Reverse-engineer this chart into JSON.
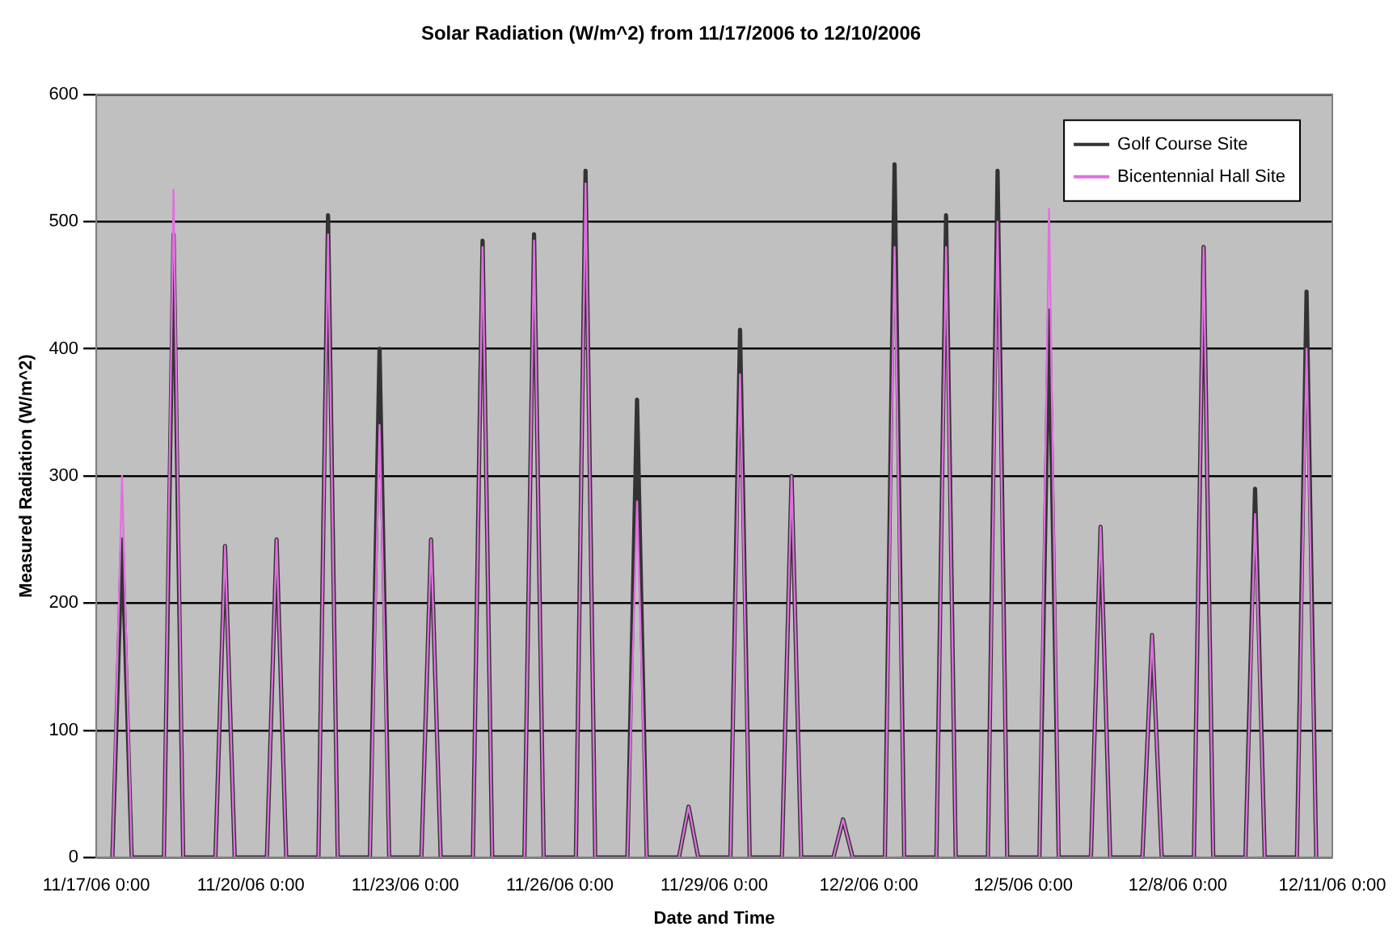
{
  "chart_data": {
    "type": "line",
    "title": "Solar Radiation (W/m^2) from 11/17/2006 to 12/10/2006",
    "xlabel": "Date and Time",
    "ylabel": "Measured Radiation (W/m^2)",
    "x": [
      "2006-11-17T07:30",
      "2006-11-17T12:00",
      "2006-11-17T16:30",
      "2006-11-18T07:30",
      "2006-11-18T12:00",
      "2006-11-18T16:30",
      "2006-11-19T07:30",
      "2006-11-19T12:00",
      "2006-11-19T16:30",
      "2006-11-20T07:30",
      "2006-11-20T12:00",
      "2006-11-20T16:30",
      "2006-11-21T07:30",
      "2006-11-21T12:00",
      "2006-11-21T16:30",
      "2006-11-22T07:30",
      "2006-11-22T12:00",
      "2006-11-22T16:30",
      "2006-11-23T07:30",
      "2006-11-23T12:00",
      "2006-11-23T16:30",
      "2006-11-24T07:30",
      "2006-11-24T12:00",
      "2006-11-24T16:30",
      "2006-11-25T07:30",
      "2006-11-25T12:00",
      "2006-11-25T16:30",
      "2006-11-26T07:30",
      "2006-11-26T12:00",
      "2006-11-26T16:30",
      "2006-11-27T07:30",
      "2006-11-27T12:00",
      "2006-11-27T16:30",
      "2006-11-28T07:30",
      "2006-11-28T12:00",
      "2006-11-28T16:30",
      "2006-11-29T07:30",
      "2006-11-29T12:00",
      "2006-11-29T16:30",
      "2006-11-30T07:30",
      "2006-11-30T12:00",
      "2006-11-30T16:30",
      "2006-12-01T07:30",
      "2006-12-01T12:00",
      "2006-12-01T16:30",
      "2006-12-02T07:30",
      "2006-12-02T12:00",
      "2006-12-02T16:30",
      "2006-12-03T07:30",
      "2006-12-03T12:00",
      "2006-12-03T16:30",
      "2006-12-04T07:30",
      "2006-12-04T12:00",
      "2006-12-04T16:30",
      "2006-12-05T07:30",
      "2006-12-05T12:00",
      "2006-12-05T16:30",
      "2006-12-06T07:30",
      "2006-12-06T12:00",
      "2006-12-06T16:30",
      "2006-12-07T07:30",
      "2006-12-07T12:00",
      "2006-12-07T16:30",
      "2006-12-08T07:30",
      "2006-12-08T12:00",
      "2006-12-08T16:30",
      "2006-12-09T07:30",
      "2006-12-09T12:00",
      "2006-12-09T16:30",
      "2006-12-10T07:30",
      "2006-12-10T12:00",
      "2006-12-10T16:30"
    ],
    "series": [
      {
        "name": "Golf Course Site",
        "color": "#333333",
        "values": [
          0,
          250,
          0,
          0,
          490,
          0,
          0,
          245,
          0,
          0,
          250,
          0,
          0,
          505,
          0,
          0,
          400,
          0,
          0,
          250,
          0,
          0,
          485,
          0,
          0,
          490,
          0,
          0,
          540,
          0,
          0,
          360,
          0,
          0,
          40,
          0,
          0,
          415,
          0,
          0,
          300,
          0,
          0,
          30,
          0,
          0,
          545,
          0,
          0,
          505,
          0,
          0,
          540,
          0,
          0,
          430,
          0,
          0,
          260,
          0,
          0,
          175,
          0,
          0,
          480,
          0,
          0,
          290,
          0,
          0,
          445,
          0
        ]
      },
      {
        "name": "Bicentennial Hall Site",
        "color": "#e070e0",
        "values": [
          0,
          300,
          0,
          0,
          525,
          0,
          0,
          245,
          0,
          0,
          250,
          0,
          0,
          490,
          0,
          0,
          340,
          0,
          0,
          250,
          0,
          0,
          480,
          0,
          0,
          485,
          0,
          0,
          530,
          0,
          0,
          280,
          0,
          0,
          40,
          0,
          0,
          380,
          0,
          0,
          300,
          0,
          0,
          30,
          0,
          0,
          480,
          0,
          0,
          480,
          0,
          0,
          500,
          0,
          0,
          510,
          0,
          0,
          260,
          0,
          0,
          175,
          0,
          0,
          480,
          0,
          0,
          270,
          0,
          0,
          400,
          0
        ]
      }
    ],
    "xlim": [
      "2006-11-17",
      "2006-12-11"
    ],
    "xticks": [
      {
        "value": "2006-11-17",
        "label": "11/17/06 0:00"
      },
      {
        "value": "2006-11-20",
        "label": "11/20/06 0:00"
      },
      {
        "value": "2006-11-23",
        "label": "11/23/06 0:00"
      },
      {
        "value": "2006-11-26",
        "label": "11/26/06 0:00"
      },
      {
        "value": "2006-11-29",
        "label": "11/29/06 0:00"
      },
      {
        "value": "2006-12-02",
        "label": "12/2/06 0:00"
      },
      {
        "value": "2006-12-05",
        "label": "12/5/06 0:00"
      },
      {
        "value": "2006-12-08",
        "label": "12/8/06 0:00"
      },
      {
        "value": "2006-12-11",
        "label": "12/11/06 0:00"
      }
    ],
    "ylim": [
      0,
      600
    ],
    "yticks": [
      0,
      100,
      200,
      300,
      400,
      500,
      600
    ],
    "grid": "y",
    "legend": "top right",
    "marker": "none",
    "line_style": "solid"
  }
}
